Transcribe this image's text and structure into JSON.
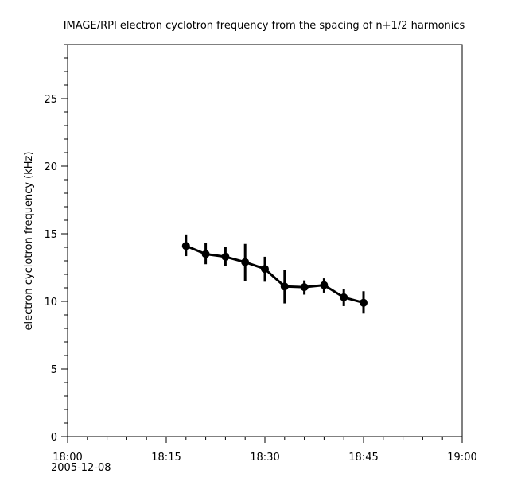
{
  "chart_data": {
    "type": "line",
    "title": "IMAGE/RPI  electron cyclotron frequency from the spacing of n+1/2 harmonics",
    "xlabel": "",
    "ylabel": "electron cyclotron frequency (kHz)",
    "date_label": "2005-12-08",
    "xlim": [
      "18:00",
      "19:00"
    ],
    "ylim": [
      0,
      29
    ],
    "x_ticks": [
      "18:00",
      "18:15",
      "18:30",
      "18:45",
      "19:00"
    ],
    "y_ticks": [
      0,
      5,
      10,
      15,
      20,
      25
    ],
    "grid": false,
    "series": [
      {
        "x": [
          "18:18",
          "18:21",
          "18:24",
          "18:27",
          "18:30",
          "18:33",
          "18:36",
          "18:39",
          "18:42",
          "18:45"
        ],
        "y": [
          14.1,
          13.5,
          13.3,
          12.9,
          12.4,
          11.1,
          11.05,
          11.2,
          10.3,
          9.9
        ],
        "err_low": [
          13.35,
          12.75,
          12.6,
          11.5,
          11.45,
          9.85,
          10.5,
          10.65,
          9.65,
          9.1
        ],
        "err_high": [
          14.95,
          14.3,
          14.0,
          14.25,
          13.3,
          12.35,
          11.55,
          11.7,
          10.9,
          10.75
        ],
        "color": "#000000"
      }
    ]
  }
}
